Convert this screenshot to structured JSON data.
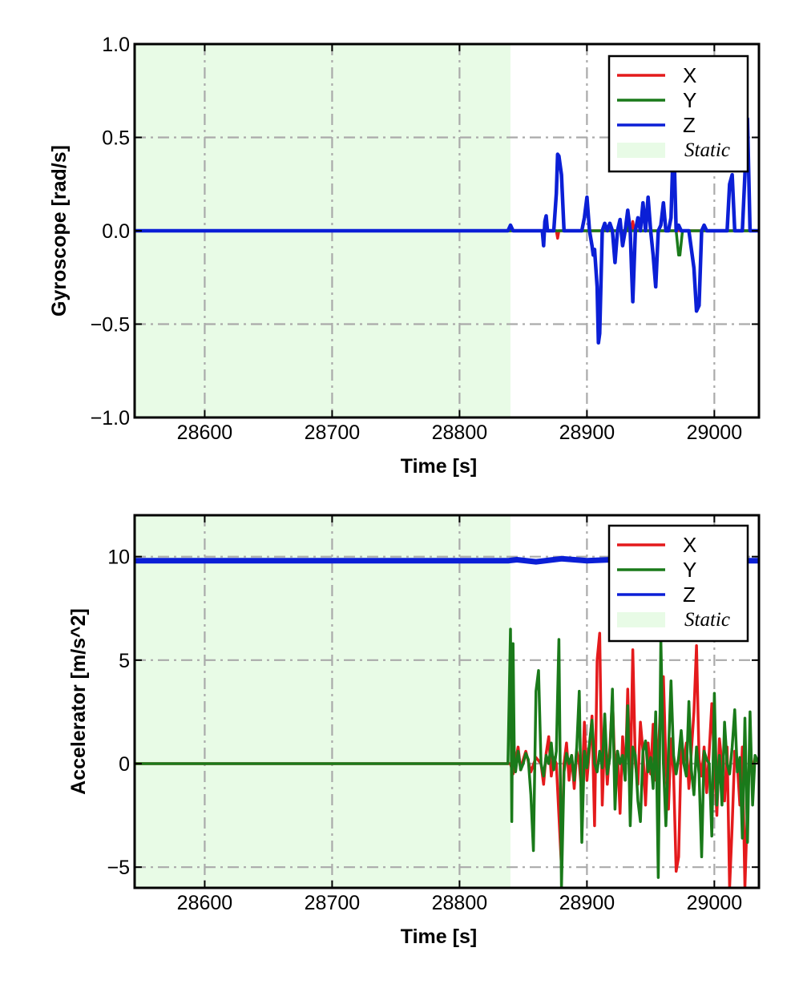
{
  "chart_data": [
    {
      "type": "line",
      "xlabel": "Time [s]",
      "ylabel": "Gyroscope [rad/s]",
      "xlim": [
        28545,
        29035
      ],
      "ylim": [
        -1.0,
        1.0
      ],
      "xticks": [
        28600,
        28700,
        28800,
        28900,
        29000
      ],
      "xtick_labels": [
        "28600",
        "28700",
        "28800",
        "28900",
        "29000"
      ],
      "yticks": [
        -1.0,
        -0.5,
        0.0,
        0.5,
        1.0
      ],
      "ytick_labels": [
        "−1.0",
        "−0.5",
        "0.0",
        "0.5",
        "1.0"
      ],
      "grid": true,
      "legend_position": "top-right",
      "static_region": {
        "label": "Static",
        "x_start": 28545,
        "x_end": 28840,
        "color": "#e8fbe6"
      },
      "series": [
        {
          "name": "X",
          "color": "#e41a1c",
          "x": [
            28545,
            28840,
            28870,
            28876,
            28877,
            28878,
            28880,
            28900,
            28930,
            28935,
            28936,
            28937,
            28940,
            29035
          ],
          "y": [
            0.0,
            0.0,
            0.0,
            0.0,
            -0.04,
            0.0,
            0.0,
            0.0,
            0.0,
            0.0,
            0.05,
            0.0,
            0.0,
            0.0
          ]
        },
        {
          "name": "Y",
          "color": "#1a7a1a",
          "x": [
            28545,
            28840,
            28900,
            28930,
            28931,
            28932,
            28970,
            28972,
            28973,
            28975,
            29035
          ],
          "y": [
            0.0,
            0.0,
            0.0,
            0.0,
            0.04,
            0.0,
            0.0,
            -0.13,
            -0.13,
            0.0,
            0.0
          ]
        },
        {
          "name": "Z",
          "color": "#0b1fd6",
          "x": [
            28545,
            28838,
            28840,
            28842,
            28865,
            28866,
            28867,
            28868,
            28869,
            28870,
            28874,
            28876,
            28877,
            28878,
            28880,
            28882,
            28884,
            28890,
            28896,
            28898,
            28900,
            28902,
            28904,
            28905,
            28906,
            28908,
            28909,
            28910,
            28912,
            28914,
            28916,
            28918,
            28920,
            28922,
            28924,
            28926,
            28928,
            28930,
            28932,
            28934,
            28935,
            28936,
            28938,
            28940,
            28942,
            28944,
            28946,
            28948,
            28950,
            28952,
            28954,
            28956,
            28958,
            28960,
            28962,
            28964,
            28966,
            28968,
            28970,
            28972,
            28974,
            28976,
            28980,
            28984,
            28986,
            28988,
            28990,
            28992,
            28994,
            28996,
            29000,
            29010,
            29012,
            29014,
            29016,
            29018,
            29020,
            29022,
            29024,
            29026,
            29028,
            29030,
            29035
          ],
          "y": [
            0.0,
            0.0,
            0.03,
            0.0,
            0.0,
            -0.08,
            0.05,
            0.08,
            0.0,
            0.0,
            0.0,
            0.2,
            0.41,
            0.4,
            0.3,
            0.0,
            0.0,
            0.0,
            0.0,
            0.07,
            0.18,
            0.0,
            -0.08,
            -0.13,
            -0.1,
            -0.3,
            -0.6,
            -0.55,
            0.0,
            0.04,
            0.0,
            0.04,
            0.0,
            -0.17,
            0.0,
            0.06,
            -0.08,
            0.0,
            0.11,
            0.0,
            -0.2,
            -0.38,
            0.0,
            0.07,
            0.0,
            0.15,
            0.0,
            0.18,
            0.0,
            -0.13,
            -0.3,
            0.0,
            0.03,
            0.15,
            0.0,
            0.0,
            0.07,
            0.52,
            0.0,
            0.03,
            0.0,
            0.0,
            0.0,
            -0.2,
            -0.43,
            -0.4,
            0.0,
            0.03,
            0.0,
            0.0,
            0.0,
            0.0,
            0.25,
            0.3,
            0.0,
            0.0,
            0.0,
            0.0,
            0.3,
            0.6,
            0.0,
            0.0,
            0.0
          ]
        }
      ]
    },
    {
      "type": "line",
      "xlabel": "Time [s]",
      "ylabel": "Accelerator [m/s^2]",
      "xlim": [
        28545,
        29035
      ],
      "ylim": [
        -6.0,
        12.0
      ],
      "xticks": [
        28600,
        28700,
        28800,
        28900,
        29000
      ],
      "xtick_labels": [
        "28600",
        "28700",
        "28800",
        "28900",
        "29000"
      ],
      "yticks": [
        -5,
        0,
        5,
        10
      ],
      "ytick_labels": [
        "−5",
        "0",
        "5",
        "10"
      ],
      "grid": true,
      "legend_position": "top-right",
      "static_region": {
        "label": "Static",
        "x_start": 28545,
        "x_end": 28840,
        "color": "#e8fbe6"
      },
      "series": [
        {
          "name": "X",
          "color": "#e41a1c",
          "x": [
            28545,
            28840,
            28842,
            28846,
            28848,
            28850,
            28852,
            28856,
            28860,
            28864,
            28866,
            28868,
            28870,
            28872,
            28874,
            28876,
            28878,
            28880,
            28882,
            28884,
            28886,
            28888,
            28890,
            28892,
            28894,
            28896,
            28898,
            28900,
            28902,
            28904,
            28906,
            28908,
            28910,
            28912,
            28914,
            28916,
            28918,
            28920,
            28922,
            28924,
            28926,
            28928,
            28930,
            28932,
            28934,
            28936,
            28938,
            28940,
            28942,
            28944,
            28946,
            28948,
            28950,
            28952,
            28954,
            28956,
            28958,
            28960,
            28962,
            28964,
            28966,
            28968,
            28970,
            28972,
            28974,
            28976,
            28978,
            28980,
            28982,
            28984,
            28986,
            28988,
            28990,
            28992,
            28994,
            28996,
            28998,
            29000,
            29002,
            29004,
            29006,
            29008,
            29010,
            29012,
            29014,
            29016,
            29018,
            29020,
            29022,
            29024,
            29026,
            29028,
            29030,
            29032,
            29035
          ],
          "y": [
            0.0,
            0.0,
            -0.5,
            0.8,
            -0.3,
            0.2,
            0.6,
            -0.4,
            0.3,
            0.0,
            -1.0,
            0.5,
            1.3,
            -0.6,
            0.3,
            0.0,
            -2.5,
            -5.0,
            0.0,
            1.0,
            -0.8,
            0.4,
            -1.2,
            0.6,
            0.0,
            -1.5,
            2.0,
            -0.8,
            0.7,
            2.3,
            -3.0,
            5.0,
            6.3,
            -2.0,
            1.5,
            -1.0,
            0.8,
            3.2,
            -0.5,
            0.6,
            -2.4,
            1.3,
            -0.8,
            3.6,
            -1.2,
            5.5,
            0.0,
            -1.0,
            2.0,
            0.6,
            -2.0,
            1.0,
            -0.5,
            1.9,
            -0.8,
            0.4,
            3.2,
            4.2,
            0.0,
            -2.2,
            1.2,
            -0.5,
            -5.2,
            -4.5,
            0.8,
            0.0,
            1.0,
            -1.2,
            0.6,
            2.5,
            5.7,
            0.2,
            -0.6,
            0.8,
            -1.4,
            0.6,
            2.9,
            0.0,
            -2.5,
            1.2,
            0.0,
            -1.8,
            0.8,
            -6.0,
            -3.0,
            0.6,
            0.0,
            -2.0,
            0.8,
            -6.0,
            -2.0,
            0.8,
            -0.4,
            0.3,
            0.0
          ]
        },
        {
          "name": "Y",
          "color": "#1a7a1a",
          "x": [
            28545,
            28838,
            28840,
            28841,
            28842,
            28843,
            28844,
            28846,
            28848,
            28850,
            28852,
            28854,
            28856,
            28858,
            28860,
            28862,
            28864,
            28866,
            28868,
            28870,
            28872,
            28874,
            28876,
            28878,
            28880,
            28882,
            28884,
            28886,
            28888,
            28890,
            28892,
            28894,
            28896,
            28898,
            28900,
            28902,
            28904,
            28906,
            28908,
            28910,
            28912,
            28914,
            28916,
            28918,
            28920,
            28922,
            28924,
            28926,
            28928,
            28930,
            28932,
            28934,
            28936,
            28938,
            28940,
            28942,
            28944,
            28946,
            28948,
            28950,
            28952,
            28954,
            28956,
            28958,
            28960,
            28962,
            28964,
            28966,
            28968,
            28970,
            28972,
            28974,
            28976,
            28978,
            28980,
            28982,
            28984,
            28986,
            28988,
            28990,
            28992,
            28994,
            28996,
            28998,
            29000,
            29002,
            29004,
            29006,
            29008,
            29010,
            29012,
            29014,
            29016,
            29018,
            29020,
            29022,
            29024,
            29026,
            29028,
            29030,
            29032,
            29035
          ],
          "y": [
            0.0,
            0.0,
            6.5,
            -2.8,
            5.8,
            0.2,
            -0.4,
            0.6,
            -0.3,
            0.0,
            0.5,
            0.2,
            -1.5,
            -4.2,
            3.5,
            4.5,
            0.0,
            -0.6,
            0.4,
            0.0,
            1.0,
            -0.3,
            0.6,
            6.0,
            -6.0,
            -0.4,
            0.5,
            0.0,
            0.4,
            -0.8,
            0.8,
            3.5,
            -3.8,
            0.6,
            -0.2,
            1.0,
            2.1,
            0.0,
            -0.4,
            0.6,
            -0.2,
            2.4,
            -0.5,
            0.3,
            3.6,
            -2.2,
            0.6,
            0.0,
            0.4,
            -0.8,
            2.8,
            -3.0,
            0.8,
            0.4,
            -1.8,
            -2.8,
            0.6,
            1.1,
            -0.4,
            0.3,
            -1.2,
            2.5,
            -5.5,
            6.0,
            0.0,
            -3.0,
            0.5,
            4.0,
            0.4,
            -0.5,
            0.3,
            1.6,
            0.0,
            -0.6,
            3.0,
            -0.3,
            -1.5,
            0.8,
            -0.5,
            -4.5,
            0.6,
            0.2,
            0.0,
            -3.5,
            3.4,
            -2.0,
            0.4,
            -2.0,
            2.0,
            0.0,
            -0.5,
            0.8,
            2.6,
            -0.4,
            0.3,
            -3.6,
            2.2,
            -3.8,
            2.5,
            -2.0,
            0.4,
            0.0
          ]
        },
        {
          "name": "Z",
          "color": "#0b1fd6",
          "x": [
            28545,
            28838,
            28845,
            28860,
            28880,
            28900,
            28920,
            28940,
            28960,
            28980,
            29000,
            29020,
            29035
          ],
          "y": [
            9.8,
            9.8,
            9.85,
            9.75,
            9.9,
            9.8,
            9.85,
            9.78,
            9.9,
            9.8,
            9.85,
            9.8,
            9.8
          ]
        }
      ]
    }
  ]
}
